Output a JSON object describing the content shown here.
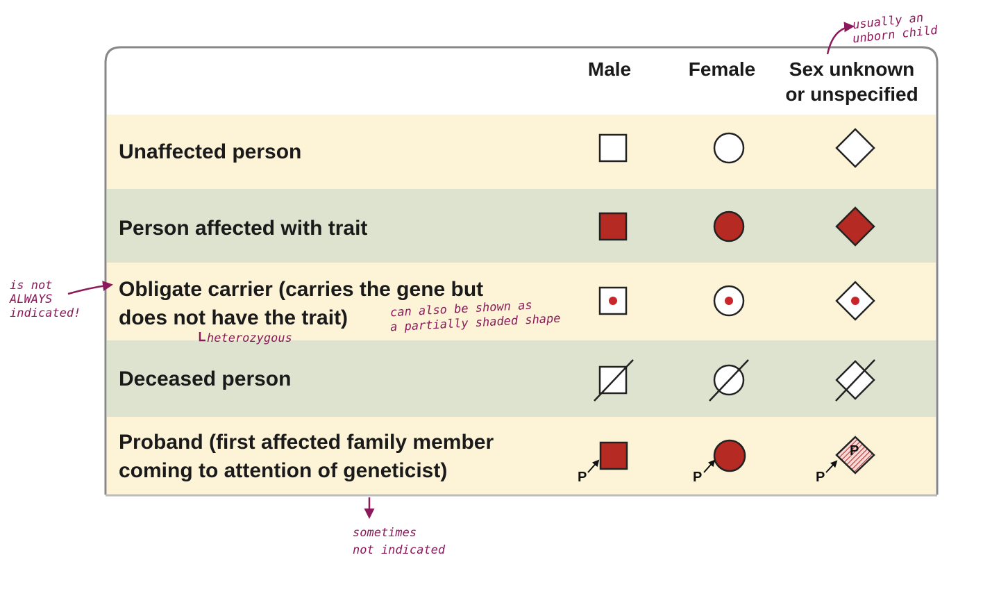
{
  "table": {
    "headers": [
      [
        "Male"
      ],
      [
        "Female"
      ],
      [
        "Sex unknown",
        "or unspecified"
      ]
    ],
    "rows": [
      {
        "label": [
          "Unaffected person"
        ]
      },
      {
        "label": [
          "Person affected with trait"
        ]
      },
      {
        "label": [
          "Obligate carrier (carries the gene but",
          "does not have the trait)"
        ]
      },
      {
        "label": [
          "Deceased person"
        ]
      },
      {
        "label": [
          "Proband (first affected family member",
          "coming to attention of geneticist)"
        ]
      }
    ],
    "proband_marker": "P"
  },
  "annotations": {
    "unknown_sex": [
      "usually an",
      "unborn child"
    ],
    "carrier_note": [
      "is not",
      "ALWAYS",
      "indicated!"
    ],
    "carrier_shading": [
      "can also be shown as",
      "a partially shaded shape"
    ],
    "carrier_genotype": [
      "heterozygous"
    ],
    "proband_note": [
      "sometimes",
      "not indicated"
    ]
  }
}
